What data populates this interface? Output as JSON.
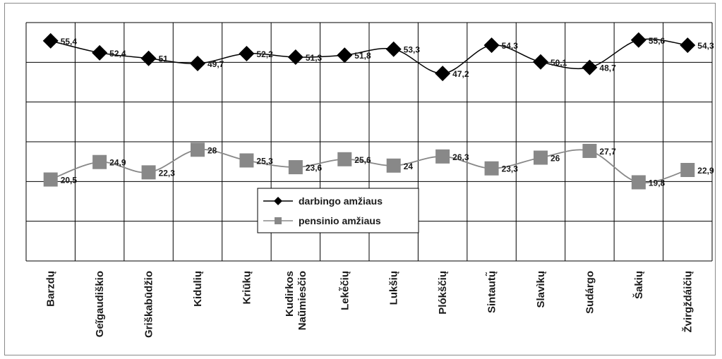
{
  "chart_data": {
    "type": "line",
    "title": "",
    "xlabel": "",
    "ylabel": "",
    "ylim": [
      0,
      60
    ],
    "grid": true,
    "legend_position": "center",
    "categories": [
      "Barzdų",
      "Geĩgaudiškio",
      "Griškabūdžio",
      "Kidulių",
      "Kriūkų",
      "Kudirkos Naũmiesčio",
      "Lekė̃čių",
      "Lukšių",
      "Plókščių",
      "Sintautų̃",
      "Slavìkų",
      "Sudárgo",
      "Šakių",
      "Žvirgždáičių"
    ],
    "series": [
      {
        "name": "darbingo amžiaus",
        "color": "#000000",
        "marker": "diamond",
        "values": [
          55.4,
          52.4,
          51,
          49.7,
          52.2,
          51.3,
          51.8,
          53.3,
          47.2,
          54.3,
          50.1,
          48.7,
          55.6,
          54.3
        ],
        "labels": [
          "55,4",
          "52,4",
          "51",
          "49,7",
          "52,2",
          "51,3",
          "51,8",
          "53,3",
          "47,2",
          "54,3",
          "50,1",
          "48,7",
          "55,6",
          "54,3"
        ]
      },
      {
        "name": "pensinio amžiaus",
        "color": "#888888",
        "marker": "square",
        "values": [
          20.5,
          24.9,
          22.3,
          28,
          25.3,
          23.6,
          25.6,
          24,
          26.3,
          23.3,
          26,
          27.7,
          19.8,
          22.9
        ],
        "labels": [
          "20,5",
          "24,9",
          "22,3",
          "28",
          "25,3",
          "23,6",
          "25,6",
          "24",
          "26,3",
          "23,3",
          "26",
          "27,7",
          "19,8",
          "22,9"
        ]
      }
    ]
  }
}
